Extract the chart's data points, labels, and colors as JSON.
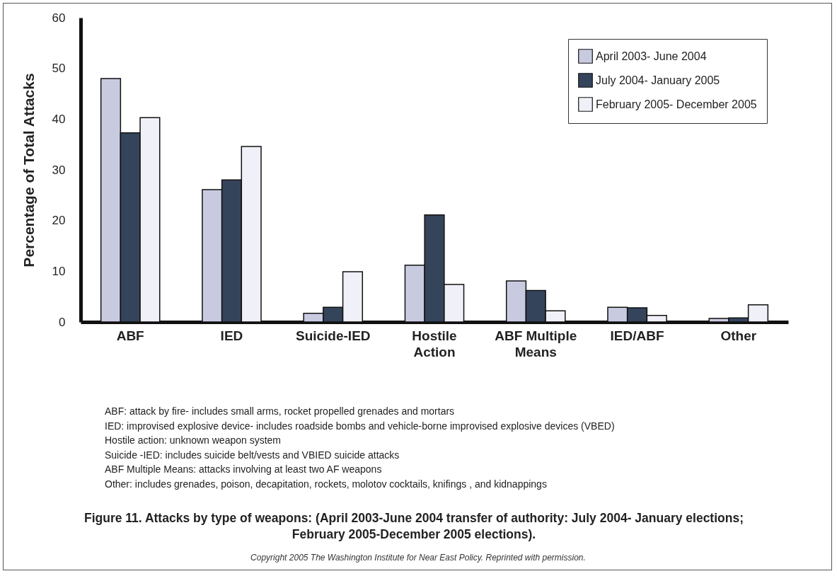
{
  "chart_data": {
    "type": "bar",
    "title": "Figure 11. Attacks by type of weapons: (April 2003-June 2004 transfer of authority: July 2004- January elections; February 2005-December 2005 elections).",
    "ylabel": "Percentage of Total Attacks",
    "categories": [
      "ABF",
      "IED",
      "Suicide-IED",
      "Hostile Action",
      "ABF Multiple Means",
      "IED/ABF",
      "Other"
    ],
    "series": [
      {
        "name": "April 2003- June 2004",
        "color": "#c8cbe0",
        "values": [
          48,
          26.1,
          1.7,
          11.2,
          8.1,
          2.9,
          0.7
        ]
      },
      {
        "name": "July 2004- January 2005",
        "color": "#34445a",
        "values": [
          37.3,
          28,
          2.9,
          21.1,
          6.2,
          2.8,
          0.8
        ]
      },
      {
        "name": "February 2005- December 2005",
        "color": "#f0f0f8",
        "values": [
          40.3,
          34.6,
          9.9,
          7.4,
          2.2,
          1.3,
          3.4
        ]
      }
    ],
    "ylim": [
      0,
      60
    ],
    "yticks": [
      0,
      10,
      20,
      30,
      40,
      50,
      60
    ],
    "grid": false,
    "legend": "top right",
    "annotations": [
      "ABF: attack by fire- includes small arms, rocket propelled grenades and mortars",
      "IED: improvised explosive device- includes roadside bombs and vehicle-borne improvised explosive devices (VBED)",
      "Hostile action: unknown weapon system",
      "Suicide -IED: includes suicide belt/vests and VBIED suicide attacks",
      "ABF Multiple Means: attacks involving at least two AF weapons",
      "Other: includes grenades, poison, decapitation, rockets, molotov cocktails, knifings , and kidnappings",
      "Copyright 2005 The Washington Institute for Near East Policy. Reprinted with permission."
    ]
  }
}
